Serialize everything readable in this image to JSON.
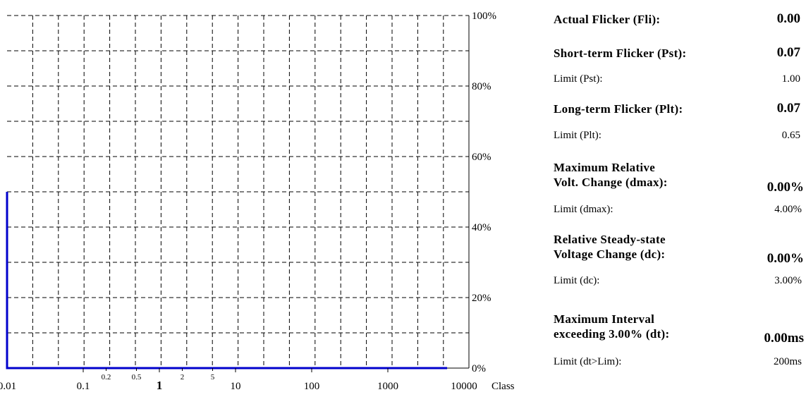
{
  "chart_data": {
    "type": "line",
    "title": "",
    "xlabel": "Class",
    "ylabel": "",
    "x_scale": "log",
    "x_ticks": [
      "0.01",
      "0.1",
      "1",
      "10",
      "100",
      "1000",
      "10000"
    ],
    "x_minor_ticks": [
      "0.2",
      "0.5",
      "2",
      "5"
    ],
    "y_ticks": [
      "0%",
      "20%",
      "40%",
      "60%",
      "80%",
      "100%"
    ],
    "xlim": [
      0.01,
      10000
    ],
    "ylim": [
      0,
      100
    ],
    "grid": true,
    "series": [
      {
        "x": [
          0.01,
          0.01,
          0.01,
          6000
        ],
        "y": [
          50,
          0,
          0,
          0
        ],
        "color": "#0000cc"
      }
    ]
  },
  "metrics": {
    "fli": {
      "label": "Actual Flicker  (Fli):",
      "value": "0.00"
    },
    "pst": {
      "label": "Short-term Flicker (Pst):",
      "value": "0.07",
      "limit_label": "Limit (Pst):",
      "limit_value": "1.00"
    },
    "plt": {
      "label": "Long-term Flicker  (Plt):",
      "value": "0.07",
      "limit_label": "Limit (Plt):",
      "limit_value": "0.65"
    },
    "dmax": {
      "label1": "Maximum Relative",
      "label2": "Volt. Change (dmax):",
      "value": "0.00%",
      "limit_label": "Limit (dmax):",
      "limit_value": "4.00%"
    },
    "dc": {
      "label1": "Relative Steady-state",
      "label2": "Voltage Change  (dc):",
      "value": "0.00%",
      "limit_label": "Limit (dc):",
      "limit_value": "3.00%"
    },
    "dt": {
      "label1": "Maximum Interval",
      "label2": "exceeding 3.00%  (dt):",
      "value": "0.00ms",
      "limit_label": "Limit (dt>Lim):",
      "limit_value": "200ms"
    }
  }
}
